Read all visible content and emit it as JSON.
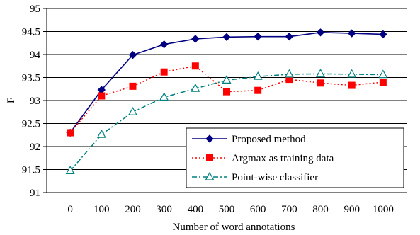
{
  "chart_data": {
    "type": "line",
    "xlabel": "Number of word annotations",
    "ylabel": "F",
    "x": [
      0,
      100,
      200,
      300,
      400,
      500,
      600,
      700,
      800,
      900,
      1000
    ],
    "ylim": [
      91,
      95
    ],
    "ytick_step": 0.5,
    "yticks": [
      "91",
      "91.5",
      "92",
      "92.5",
      "93",
      "93.5",
      "94",
      "94.5",
      "95"
    ],
    "grid": "horizontal",
    "legend_position": "bottom-right",
    "series": [
      {
        "name": "Proposed method",
        "values": [
          92.3,
          93.23,
          93.99,
          94.22,
          94.34,
          94.38,
          94.39,
          94.39,
          94.48,
          94.46,
          94.44
        ],
        "color": "#000080",
        "marker": "diamond",
        "line": "solid"
      },
      {
        "name": "Argmax as training data",
        "values": [
          92.3,
          93.1,
          93.31,
          93.62,
          93.75,
          93.19,
          93.22,
          93.46,
          93.38,
          93.33,
          93.4
        ],
        "color": "#ff0000",
        "marker": "square",
        "line": "dotted"
      },
      {
        "name": "Point-wise classifier",
        "values": [
          91.47,
          92.26,
          92.75,
          93.07,
          93.26,
          93.44,
          93.52,
          93.57,
          93.58,
          93.57,
          93.56
        ],
        "color": "#008080",
        "marker": "triangle",
        "line": "dashdot"
      }
    ]
  }
}
